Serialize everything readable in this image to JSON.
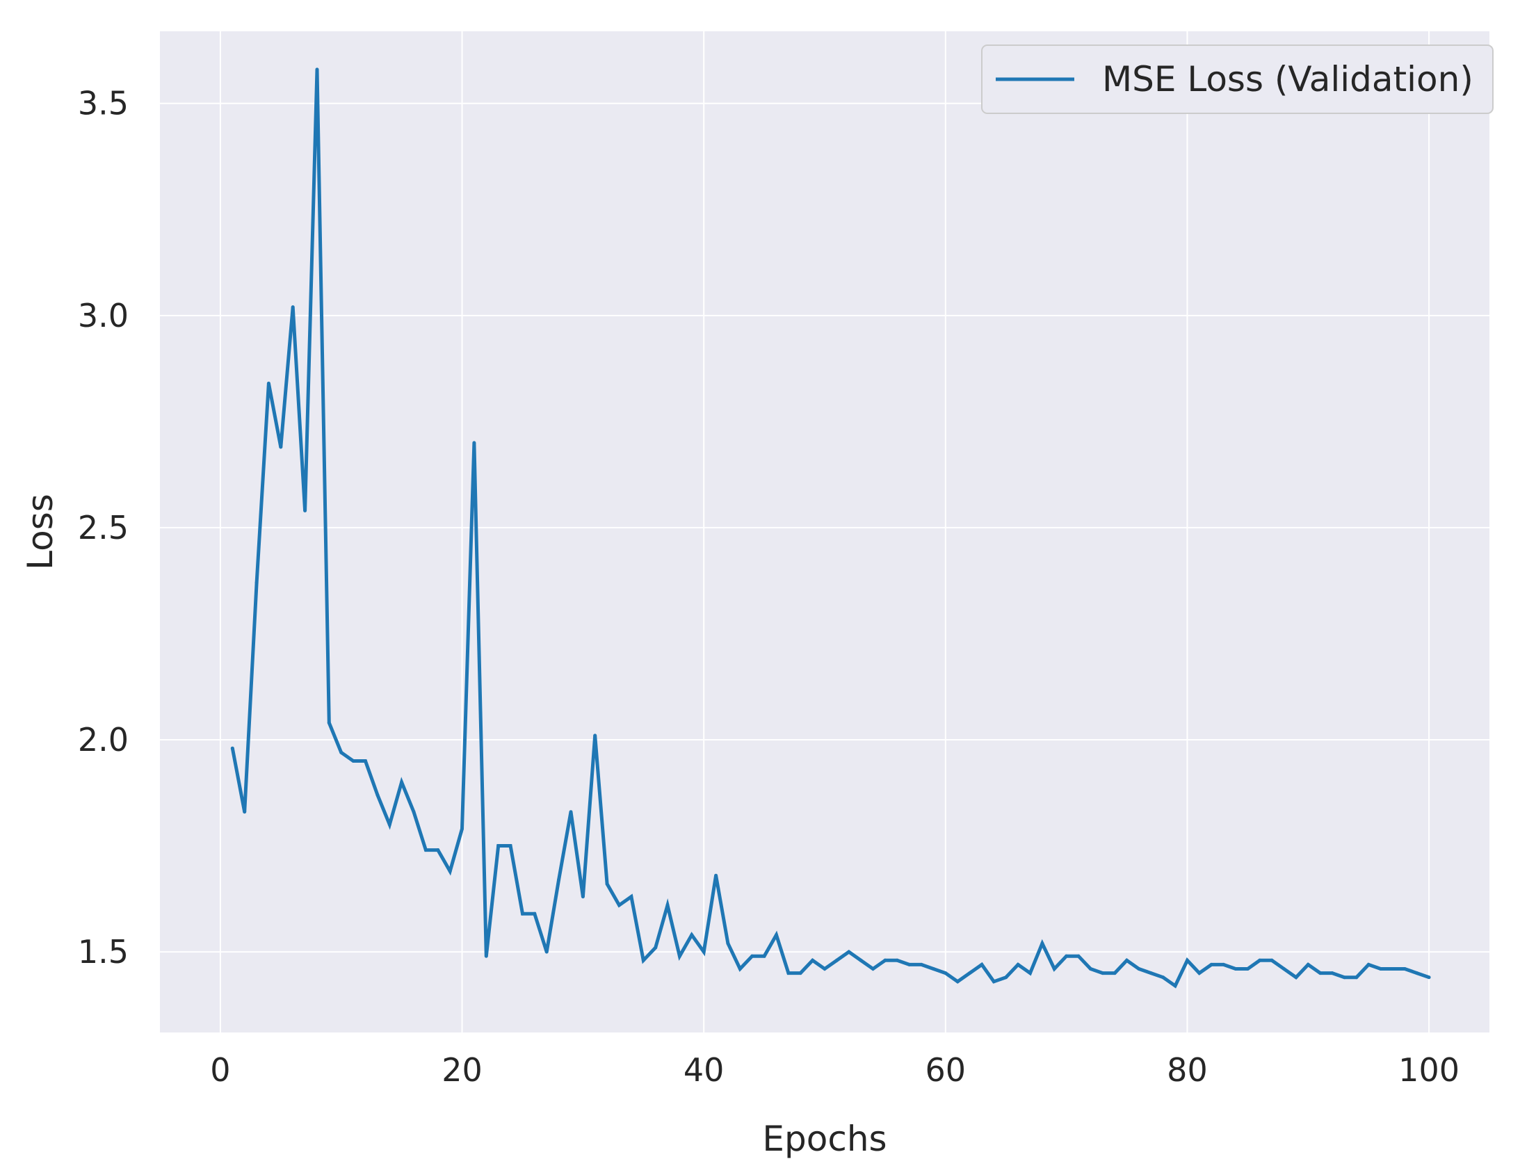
{
  "chart_data": {
    "type": "line",
    "title": "",
    "xlabel": "Epochs",
    "ylabel": "Loss",
    "xlim": [
      -5,
      105
    ],
    "ylim": [
      1.31,
      3.67
    ],
    "xticks": [
      0,
      20,
      40,
      60,
      80,
      100
    ],
    "xtick_labels": [
      "0",
      "20",
      "40",
      "60",
      "80",
      "100"
    ],
    "yticks": [
      1.5,
      2.0,
      2.5,
      3.0,
      3.5
    ],
    "ytick_labels": [
      "1.5",
      "2.0",
      "2.5",
      "3.0",
      "3.5"
    ],
    "grid": true,
    "legend_position": "top-right",
    "background_color": "#eaeaf2",
    "grid_color": "#ffffff",
    "series": [
      {
        "name": "MSE Loss (Validation)",
        "color": "#1f77b4",
        "x": [
          1,
          2,
          3,
          4,
          5,
          6,
          7,
          8,
          9,
          10,
          11,
          12,
          13,
          14,
          15,
          16,
          17,
          18,
          19,
          20,
          21,
          22,
          23,
          24,
          25,
          26,
          27,
          28,
          29,
          30,
          31,
          32,
          33,
          34,
          35,
          36,
          37,
          38,
          39,
          40,
          41,
          42,
          43,
          44,
          45,
          46,
          47,
          48,
          49,
          50,
          51,
          52,
          53,
          54,
          55,
          56,
          57,
          58,
          59,
          60,
          61,
          62,
          63,
          64,
          65,
          66,
          67,
          68,
          69,
          70,
          71,
          72,
          73,
          74,
          75,
          76,
          77,
          78,
          79,
          80,
          81,
          82,
          83,
          84,
          85,
          86,
          87,
          88,
          89,
          90,
          91,
          92,
          93,
          94,
          95,
          96,
          97,
          98,
          99,
          100
        ],
        "values": [
          1.98,
          1.83,
          2.37,
          2.84,
          2.69,
          3.02,
          2.54,
          3.58,
          2.04,
          1.97,
          1.95,
          1.95,
          1.87,
          1.8,
          1.9,
          1.83,
          1.74,
          1.74,
          1.69,
          1.79,
          2.7,
          1.49,
          1.75,
          1.75,
          1.59,
          1.59,
          1.5,
          1.67,
          1.83,
          1.63,
          2.01,
          1.66,
          1.61,
          1.63,
          1.48,
          1.51,
          1.61,
          1.49,
          1.54,
          1.5,
          1.68,
          1.52,
          1.46,
          1.49,
          1.49,
          1.54,
          1.45,
          1.45,
          1.48,
          1.46,
          1.48,
          1.5,
          1.48,
          1.46,
          1.48,
          1.48,
          1.47,
          1.47,
          1.46,
          1.45,
          1.43,
          1.45,
          1.47,
          1.43,
          1.44,
          1.47,
          1.45,
          1.52,
          1.46,
          1.49,
          1.49,
          1.46,
          1.45,
          1.45,
          1.48,
          1.46,
          1.45,
          1.44,
          1.42,
          1.48,
          1.45,
          1.47,
          1.47,
          1.46,
          1.46,
          1.48,
          1.48,
          1.46,
          1.44,
          1.47,
          1.45,
          1.45,
          1.44,
          1.44,
          1.47,
          1.46,
          1.46,
          1.46,
          1.45,
          1.44
        ]
      }
    ]
  }
}
